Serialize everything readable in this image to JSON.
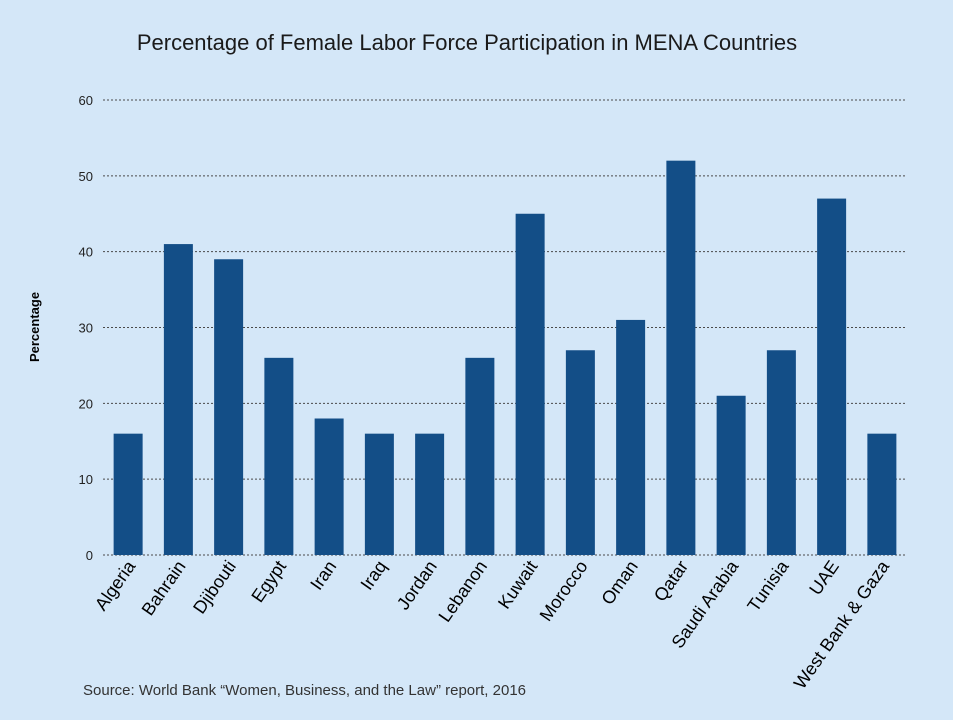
{
  "chart_data": {
    "type": "bar",
    "title": "Percentage of Female Labor Force Participation in MENA Countries",
    "xlabel": "",
    "ylabel": "Percentage",
    "ylim": [
      0,
      60
    ],
    "yticks": [
      0,
      10,
      20,
      30,
      40,
      50,
      60
    ],
    "grid": true,
    "categories": [
      "Algeria",
      "Bahrain",
      "Djibouti",
      "Egypt",
      "Iran",
      "Iraq",
      "Jordan",
      "Lebanon",
      "Kuwait",
      "Morocco",
      "Oman",
      "Qatar",
      "Saudi Arabia",
      "Tunisia",
      "UAE",
      "West Bank & Gaza"
    ],
    "values": [
      16,
      41,
      39,
      26,
      18,
      16,
      16,
      26,
      45,
      27,
      31,
      52,
      21,
      27,
      47,
      16
    ],
    "bar_color": "#134e87",
    "background_color": "#d4e7f8"
  },
  "source": "Source: World Bank “Women, Business, and the Law” report, 2016"
}
